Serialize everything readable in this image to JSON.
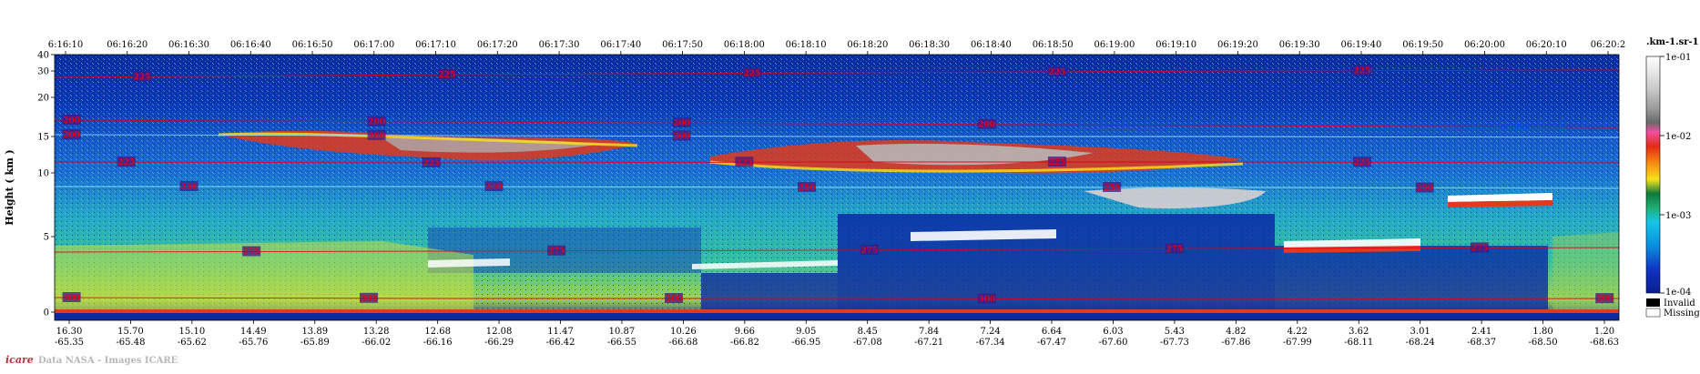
{
  "chart_data": {
    "type": "heatmap",
    "ylabel": "Height ( km )",
    "units_label": ".km-1.sr-1",
    "time_ticks": [
      "6:16:10",
      "06:16:20",
      "06:16:30",
      "06:16:40",
      "06:16:50",
      "06:17:00",
      "06:17:10",
      "06:17:20",
      "06:17:30",
      "06:17:40",
      "06:17:50",
      "06:18:00",
      "06:18:10",
      "06:18:20",
      "06:18:30",
      "06:18:40",
      "06:18:50",
      "06:19:00",
      "06:19:10",
      "06:19:20",
      "06:19:30",
      "06:19:40",
      "06:19:50",
      "06:20:00",
      "06:20:10",
      "06:20:2"
    ],
    "lat_ticks": [
      "16.30",
      "15.70",
      "15.10",
      "14.49",
      "13.89",
      "13.28",
      "12.68",
      "12.08",
      "11.47",
      "10.87",
      "10.26",
      "9.66",
      "9.05",
      "8.45",
      "7.84",
      "7.24",
      "6.64",
      "6.03",
      "5.43",
      "4.82",
      "4.22",
      "3.62",
      "3.01",
      "2.41",
      "1.80",
      "1.20"
    ],
    "lon_ticks": [
      "-65.35",
      "-65.48",
      "-65.62",
      "-65.76",
      "-65.89",
      "-66.02",
      "-66.16",
      "-66.29",
      "-66.42",
      "-66.55",
      "-66.68",
      "-66.82",
      "-66.95",
      "-67.08",
      "-67.21",
      "-67.34",
      "-67.47",
      "-67.60",
      "-67.73",
      "-67.86",
      "-67.99",
      "-68.11",
      "-68.24",
      "-68.37",
      "-68.50",
      "-68.63"
    ],
    "y_ticks": [
      "40",
      "30",
      "20",
      "15",
      "10",
      "5",
      "0"
    ],
    "colorbar_ticks": [
      "1e-01",
      "1e-02",
      "1e-03",
      "1e-04"
    ],
    "legend_extra": [
      {
        "label": "Invalid",
        "color": "#000000"
      },
      {
        "label": "Missing",
        "color": "#ffffff"
      }
    ],
    "contour_levels": [
      {
        "level": "225",
        "row": "upper"
      },
      {
        "level": "200",
        "row": "tropopause"
      },
      {
        "level": "225",
        "row": "mid"
      },
      {
        "level": "250",
        "row": "mid-low"
      },
      {
        "level": "275",
        "row": "low"
      },
      {
        "level": "300",
        "row": "surface"
      }
    ],
    "contour_labels": [
      {
        "text": "225",
        "x": 0.05,
        "row": 0
      },
      {
        "text": "225",
        "x": 0.245,
        "row": 0
      },
      {
        "text": "225",
        "x": 0.44,
        "row": 0
      },
      {
        "text": "225",
        "x": 0.635,
        "row": 0
      },
      {
        "text": "225",
        "x": 0.83,
        "row": 0
      },
      {
        "text": "200",
        "x": 0.005,
        "row": 1
      },
      {
        "text": "200",
        "x": 0.2,
        "row": 1
      },
      {
        "text": "200",
        "x": 0.395,
        "row": 1
      },
      {
        "text": "200",
        "x": 0.59,
        "row": 1
      },
      {
        "text": "200",
        "x": 0.005,
        "row": 2
      },
      {
        "text": "200",
        "x": 0.2,
        "row": 2
      },
      {
        "text": "200",
        "x": 0.395,
        "row": 2
      },
      {
        "text": "225",
        "x": 0.04,
        "row": 3
      },
      {
        "text": "225",
        "x": 0.235,
        "row": 3
      },
      {
        "text": "225",
        "x": 0.435,
        "row": 3
      },
      {
        "text": "225",
        "x": 0.635,
        "row": 3
      },
      {
        "text": "225",
        "x": 0.83,
        "row": 3
      },
      {
        "text": "250",
        "x": 0.08,
        "row": 4
      },
      {
        "text": "250",
        "x": 0.275,
        "row": 4
      },
      {
        "text": "250",
        "x": 0.475,
        "row": 4
      },
      {
        "text": "250",
        "x": 0.67,
        "row": 4
      },
      {
        "text": "250",
        "x": 0.87,
        "row": 4
      },
      {
        "text": "275",
        "x": 0.12,
        "row": 5
      },
      {
        "text": "275",
        "x": 0.315,
        "row": 5
      },
      {
        "text": "275",
        "x": 0.515,
        "row": 5
      },
      {
        "text": "275",
        "x": 0.71,
        "row": 5
      },
      {
        "text": "275",
        "x": 0.905,
        "row": 5
      },
      {
        "text": "300",
        "x": 0.005,
        "row": 6
      },
      {
        "text": "300",
        "x": 0.195,
        "row": 6
      },
      {
        "text": "300",
        "x": 0.39,
        "row": 6
      },
      {
        "text": "300",
        "x": 0.59,
        "row": 6
      },
      {
        "text": "300",
        "x": 0.985,
        "row": 6
      }
    ]
  },
  "footer": {
    "logo_text": "icare",
    "credit": "Data NASA - Images ICARE"
  }
}
